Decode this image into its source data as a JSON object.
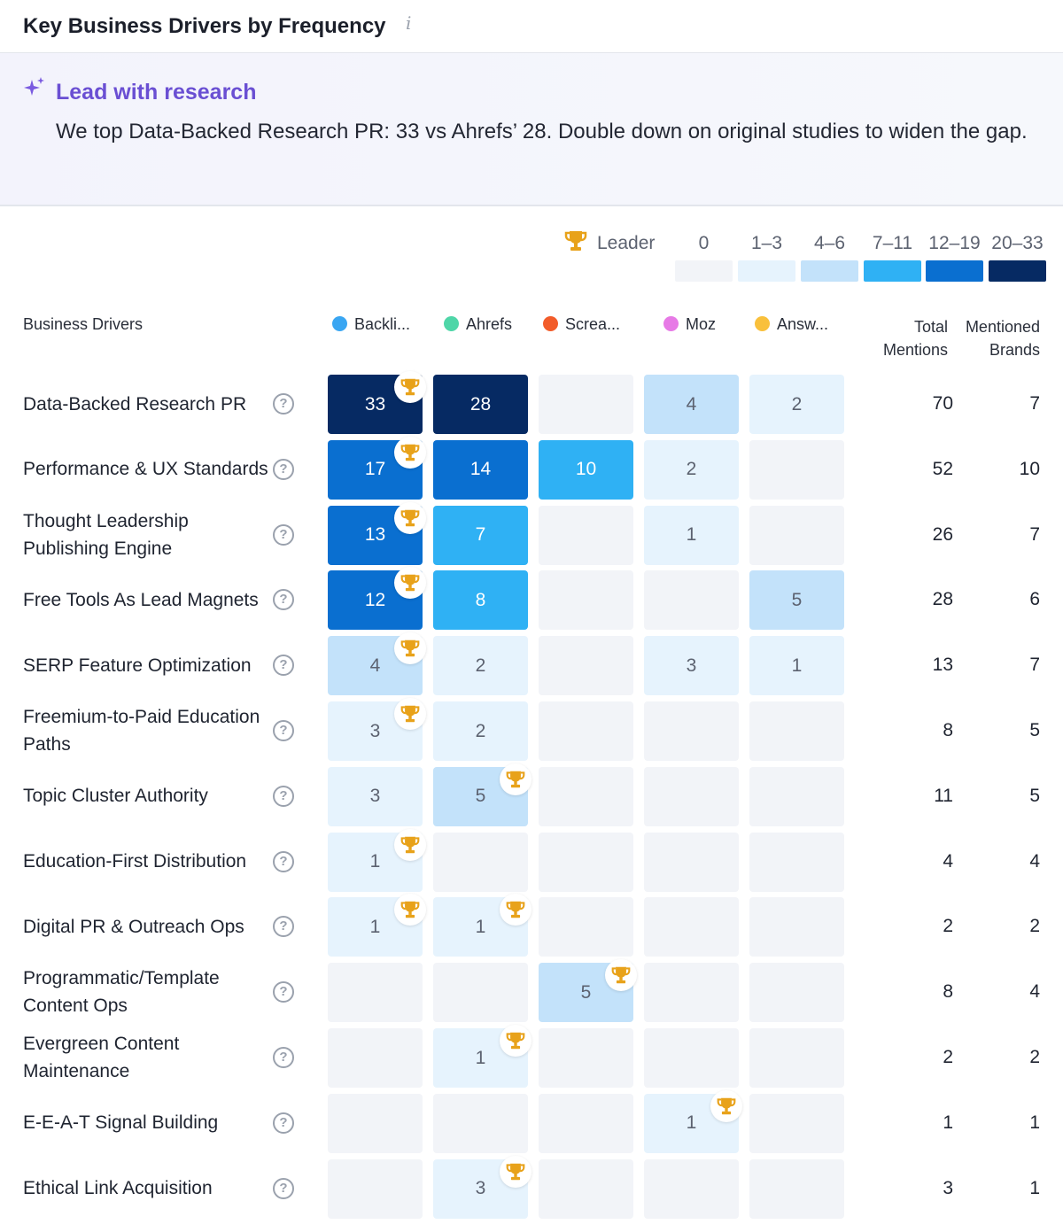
{
  "header": {
    "title": "Key Business Drivers by Frequency",
    "info_icon": "i"
  },
  "insight": {
    "icon": "sparkle-icon",
    "title": "Lead with research",
    "text": "We top Data-Backed Research PR: 33 vs Ahrefs’ 28. Double down on original studies to widen the gap."
  },
  "legend": {
    "leader_label": "Leader",
    "ranges": [
      {
        "label": "0",
        "color": "#f2f4f8"
      },
      {
        "label": "1–3",
        "color": "#e6f3fd"
      },
      {
        "label": "4–6",
        "color": "#c3e2fa"
      },
      {
        "label": "7–11",
        "color": "#2fb1f4"
      },
      {
        "label": "12–19",
        "color": "#0a6fd0"
      },
      {
        "label": "20–33",
        "color": "#062a63"
      }
    ]
  },
  "table": {
    "drivers_header": "Business Drivers",
    "total_header_line1": "Total",
    "total_header_line2": "Mentions",
    "brands_header_line1": "Mentioned",
    "brands_header_line2": "Brands",
    "brands": [
      {
        "name": "Backli...",
        "color": "#3aa6f2"
      },
      {
        "name": "Ahrefs",
        "color": "#4fd6a8"
      },
      {
        "name": "Screa...",
        "color": "#f25c2a"
      },
      {
        "name": "Moz",
        "color": "#e77ae6"
      },
      {
        "name": "Answ...",
        "color": "#f9c03c"
      }
    ]
  },
  "chart_data": {
    "type": "heatmap",
    "title": "Key Business Drivers by Frequency",
    "columns": [
      "Backli...",
      "Ahrefs",
      "Screa...",
      "Moz",
      "Answ..."
    ],
    "rows": [
      {
        "label": "Data-Backed Research PR",
        "values": [
          33,
          28,
          0,
          4,
          2
        ],
        "leaders": [
          0
        ],
        "total": 70,
        "brands": 7
      },
      {
        "label": "Performance & UX Standards",
        "values": [
          17,
          14,
          10,
          2,
          0
        ],
        "leaders": [
          0
        ],
        "total": 52,
        "brands": 10
      },
      {
        "label": "Thought Leadership Publishing Engine",
        "values": [
          13,
          7,
          0,
          1,
          0
        ],
        "leaders": [
          0
        ],
        "total": 26,
        "brands": 7
      },
      {
        "label": "Free Tools As Lead Magnets",
        "values": [
          12,
          8,
          0,
          0,
          5
        ],
        "leaders": [
          0
        ],
        "total": 28,
        "brands": 6
      },
      {
        "label": "SERP Feature Optimization",
        "values": [
          4,
          2,
          0,
          3,
          1
        ],
        "leaders": [
          0
        ],
        "total": 13,
        "brands": 7
      },
      {
        "label": "Freemium-to-Paid Education Paths",
        "values": [
          3,
          2,
          0,
          0,
          0
        ],
        "leaders": [
          0
        ],
        "total": 8,
        "brands": 5
      },
      {
        "label": "Topic Cluster Authority",
        "values": [
          3,
          5,
          0,
          0,
          0
        ],
        "leaders": [
          1
        ],
        "total": 11,
        "brands": 5
      },
      {
        "label": "Education-First Distribution",
        "values": [
          1,
          0,
          0,
          0,
          0
        ],
        "leaders": [
          0
        ],
        "total": 4,
        "brands": 4
      },
      {
        "label": "Digital PR & Outreach Ops",
        "values": [
          1,
          1,
          0,
          0,
          0
        ],
        "leaders": [
          0,
          1
        ],
        "total": 2,
        "brands": 2
      },
      {
        "label": "Programmatic/Template Content Ops",
        "values": [
          0,
          0,
          5,
          0,
          0
        ],
        "leaders": [
          2
        ],
        "total": 8,
        "brands": 4
      },
      {
        "label": "Evergreen Content Maintenance",
        "values": [
          0,
          1,
          0,
          0,
          0
        ],
        "leaders": [
          1
        ],
        "total": 2,
        "brands": 2
      },
      {
        "label": "E-E-A-T Signal Building",
        "values": [
          0,
          0,
          0,
          1,
          0
        ],
        "leaders": [
          3
        ],
        "total": 1,
        "brands": 1
      },
      {
        "label": "Ethical Link Acquisition",
        "values": [
          0,
          3,
          0,
          0,
          0
        ],
        "leaders": [
          1
        ],
        "total": 3,
        "brands": 1
      }
    ]
  }
}
